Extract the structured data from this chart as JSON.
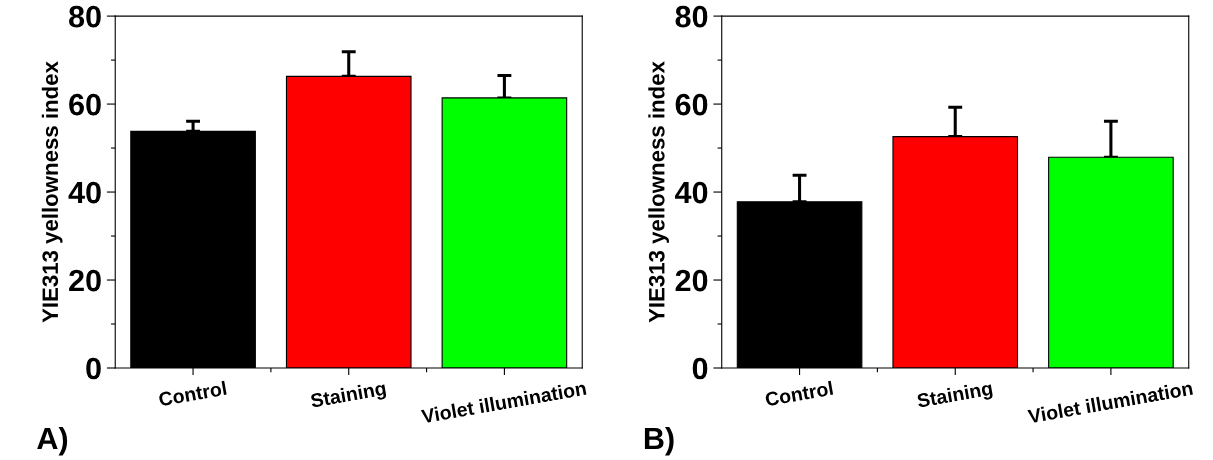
{
  "chart_data": [
    {
      "type": "bar",
      "ylabel": "YIE313 yellowness index",
      "categories": [
        "Control",
        "Staining",
        "Violet illumination"
      ],
      "values": [
        53.8,
        66.3,
        61.4
      ],
      "colors": [
        "#000000",
        "#ff0000",
        "#00ff00"
      ],
      "errors": [
        [
          53.8,
          56.1
        ],
        [
          66.3,
          71.9
        ],
        [
          61.4,
          66.5
        ]
      ],
      "ylim": [
        0,
        80
      ],
      "yticks": [
        0,
        20,
        40,
        60,
        80
      ],
      "grid": false,
      "legend": false,
      "annotations": [
        "A)"
      ]
    },
    {
      "type": "bar",
      "ylabel": "YIE313 yellowness index",
      "categories": [
        "Control",
        "Staining",
        "Violet illumination"
      ],
      "values": [
        37.8,
        52.6,
        47.9
      ],
      "colors": [
        "#000000",
        "#ff0000",
        "#00ff00"
      ],
      "errors": [
        [
          37.8,
          43.8
        ],
        [
          52.6,
          59.3
        ],
        [
          47.9,
          56.1
        ]
      ],
      "ylim": [
        0,
        80
      ],
      "yticks": [
        0,
        20,
        40,
        60,
        80
      ],
      "grid": false,
      "legend": false,
      "annotations": [
        "B)"
      ]
    }
  ]
}
